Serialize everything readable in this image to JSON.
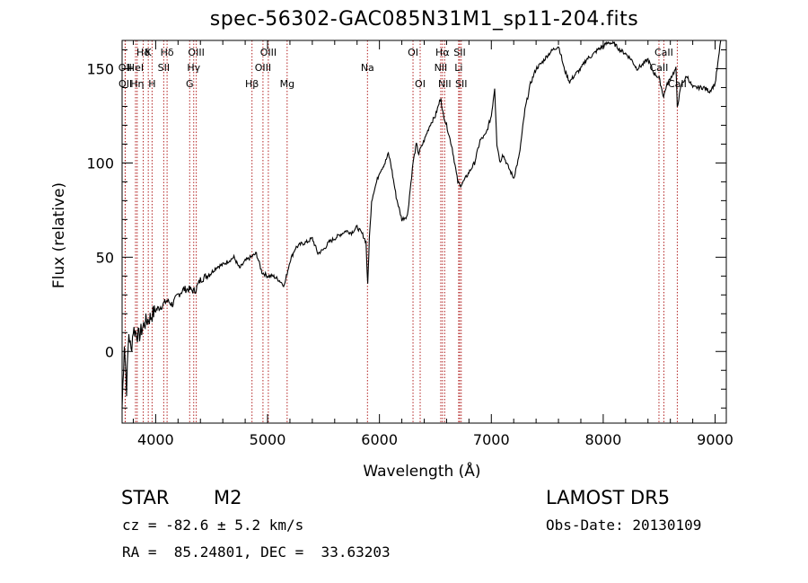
{
  "chart_data": {
    "type": "line",
    "title": "spec-56302-GAC085N31M1_sp11-204.fits",
    "xlabel": "Wavelength (Å)",
    "ylabel": "Flux (relative)",
    "xlim": [
      3700,
      9100
    ],
    "ylim": [
      -38,
      165
    ],
    "xticks": [
      4000,
      5000,
      6000,
      7000,
      8000,
      9000
    ],
    "yticks": [
      0,
      50,
      100,
      150
    ],
    "x_minor_step": 200,
    "y_minor_step": 10,
    "grid": false,
    "line_color": "#000000",
    "marker_color": "#b22222",
    "spectrum": {
      "x": [
        3700,
        3720,
        3740,
        3760,
        3780,
        3800,
        3850,
        3900,
        3950,
        4000,
        4050,
        4100,
        4150,
        4200,
        4250,
        4300,
        4350,
        4400,
        4450,
        4500,
        4550,
        4600,
        4650,
        4700,
        4750,
        4800,
        4850,
        4900,
        4950,
        5000,
        5050,
        5100,
        5150,
        5200,
        5250,
        5300,
        5350,
        5400,
        5450,
        5500,
        5550,
        5600,
        5650,
        5700,
        5750,
        5800,
        5850,
        5880,
        5895,
        5910,
        5930,
        5950,
        6000,
        6050,
        6080,
        6100,
        6150,
        6200,
        6250,
        6300,
        6330,
        6350,
        6400,
        6450,
        6500,
        6550,
        6560,
        6600,
        6650,
        6700,
        6720,
        6750,
        6800,
        6850,
        6900,
        6950,
        7000,
        7030,
        7050,
        7080,
        7100,
        7150,
        7200,
        7250,
        7300,
        7350,
        7400,
        7450,
        7500,
        7550,
        7600,
        7620,
        7650,
        7700,
        7750,
        7800,
        7850,
        7900,
        7950,
        8000,
        8050,
        8100,
        8150,
        8200,
        8250,
        8300,
        8350,
        8400,
        8450,
        8500,
        8540,
        8560,
        8600,
        8650,
        8662,
        8700,
        8750,
        8800,
        8850,
        8900,
        8950,
        9000,
        9030,
        9050
      ],
      "y": [
        -30,
        5,
        -20,
        10,
        0,
        12,
        8,
        15,
        18,
        22,
        24,
        27,
        25,
        30,
        33,
        33,
        32,
        38,
        40,
        42,
        45,
        46,
        48,
        50,
        44,
        48,
        50,
        52,
        42,
        40,
        40,
        38,
        35,
        48,
        55,
        57,
        58,
        60,
        52,
        54,
        58,
        60,
        62,
        64,
        63,
        66,
        62,
        58,
        35,
        60,
        80,
        85,
        95,
        100,
        105,
        100,
        82,
        70,
        72,
        100,
        110,
        105,
        112,
        120,
        125,
        135,
        128,
        120,
        108,
        90,
        88,
        90,
        95,
        100,
        112,
        115,
        125,
        140,
        110,
        100,
        105,
        98,
        92,
        104,
        128,
        142,
        150,
        153,
        157,
        160,
        162,
        158,
        150,
        143,
        147,
        150,
        155,
        157,
        160,
        162,
        164,
        163,
        160,
        158,
        155,
        150,
        152,
        155,
        148,
        145,
        135,
        140,
        145,
        150,
        130,
        142,
        146,
        140,
        140,
        140,
        138,
        142,
        155,
        165
      ]
    },
    "lines": [
      {
        "label": "Hδ",
        "row": 0,
        "x": 3889
      },
      {
        "label": "K",
        "row": 0,
        "x": 3934
      },
      {
        "label": "Hδ",
        "row": 0,
        "x": 4102
      },
      {
        "label": "OIII",
        "row": 0,
        "x": 4363
      },
      {
        "label": "OIII",
        "row": 0,
        "x": 5007
      },
      {
        "label": "OI",
        "row": 0,
        "x": 6300
      },
      {
        "label": "Hα",
        "row": 0,
        "x": 6563
      },
      {
        "label": "SII",
        "row": 0,
        "x": 6717
      },
      {
        "label": "CaII",
        "row": 0,
        "x": 8542
      },
      {
        "label": "OII",
        "row": 1,
        "x": 3727
      },
      {
        "label": "HeI",
        "row": 1,
        "x": 3820
      },
      {
        "label": "SII",
        "row": 1,
        "x": 4072
      },
      {
        "label": "Hγ",
        "row": 1,
        "x": 4340
      },
      {
        "label": "OIII",
        "row": 1,
        "x": 4959
      },
      {
        "label": "Na",
        "row": 1,
        "x": 5893
      },
      {
        "label": "NII",
        "row": 1,
        "x": 6548
      },
      {
        "label": "Li",
        "row": 1,
        "x": 6708
      },
      {
        "label": "CaII",
        "row": 1,
        "x": 8498
      },
      {
        "label": "OII",
        "row": 2,
        "x": 3729
      },
      {
        "label": "Hη",
        "row": 2,
        "x": 3835
      },
      {
        "label": "H",
        "row": 2,
        "x": 3968
      },
      {
        "label": "G",
        "row": 2,
        "x": 4304
      },
      {
        "label": "Hβ",
        "row": 2,
        "x": 4861
      },
      {
        "label": "Mg",
        "row": 2,
        "x": 5175
      },
      {
        "label": "OI",
        "row": 2,
        "x": 6364
      },
      {
        "label": "NII",
        "row": 2,
        "x": 6583
      },
      {
        "label": "SII",
        "row": 2,
        "x": 6731
      },
      {
        "label": "CaII",
        "row": 2,
        "x": 8662
      }
    ]
  },
  "info": {
    "class": "STAR",
    "subclass": "M2",
    "survey": "LAMOST DR5",
    "cz": "cz = -82.6 ± 5.2 km/s",
    "obs_date": "Obs-Date: 20130109",
    "coords": "RA =  85.24801, DEC =  33.63203"
  }
}
